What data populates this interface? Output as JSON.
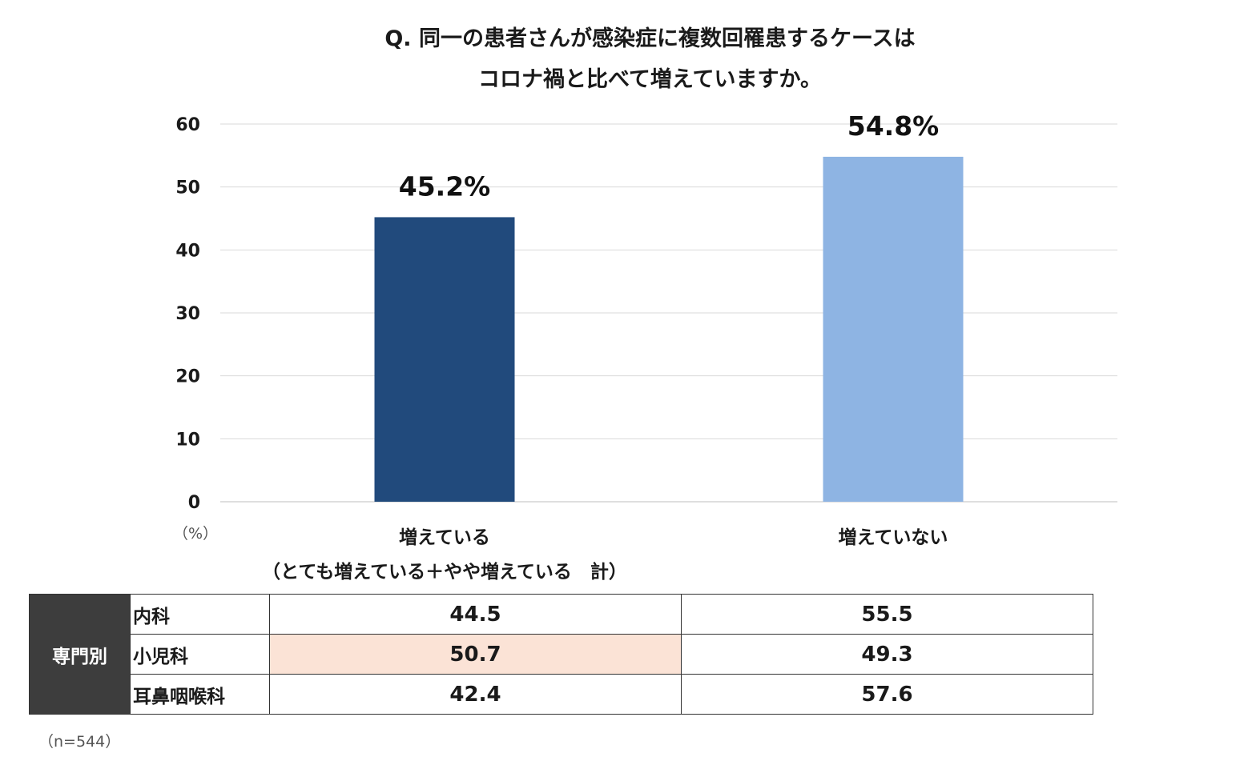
{
  "title_line1": "Q. 同一の患者さんが感染症に複数回罹患するケースは",
  "title_line2": "コロナ禍と比べて増えていますか。",
  "unit_label": "（%）",
  "categories": [
    {
      "line1": "増えている",
      "line2": "（とても増えている＋やや増えている　計）"
    },
    {
      "line1": "増えていない",
      "line2": ""
    }
  ],
  "chart_data": {
    "type": "bar",
    "categories": [
      "増えている",
      "増えていない"
    ],
    "values": [
      45.2,
      54.8
    ],
    "value_labels": [
      "45.2%",
      "54.8%"
    ],
    "colors": [
      "#214a7c",
      "#8eb4e3"
    ],
    "yticks": [
      "0",
      "10",
      "20",
      "30",
      "40",
      "50",
      "60"
    ],
    "ylim": [
      0,
      60
    ],
    "grid": true,
    "legend": "none"
  },
  "table": {
    "group_label": "専門別",
    "rows": [
      {
        "label": "内科",
        "v1": "44.5",
        "v2": "55.5"
      },
      {
        "label": "小児科",
        "v1": "50.7",
        "v2": "49.3"
      },
      {
        "label": "耳鼻咽喉科",
        "v1": "42.4",
        "v2": "57.6"
      }
    ],
    "highlight_color": "#fbe3d6"
  },
  "note": "（n=544）"
}
